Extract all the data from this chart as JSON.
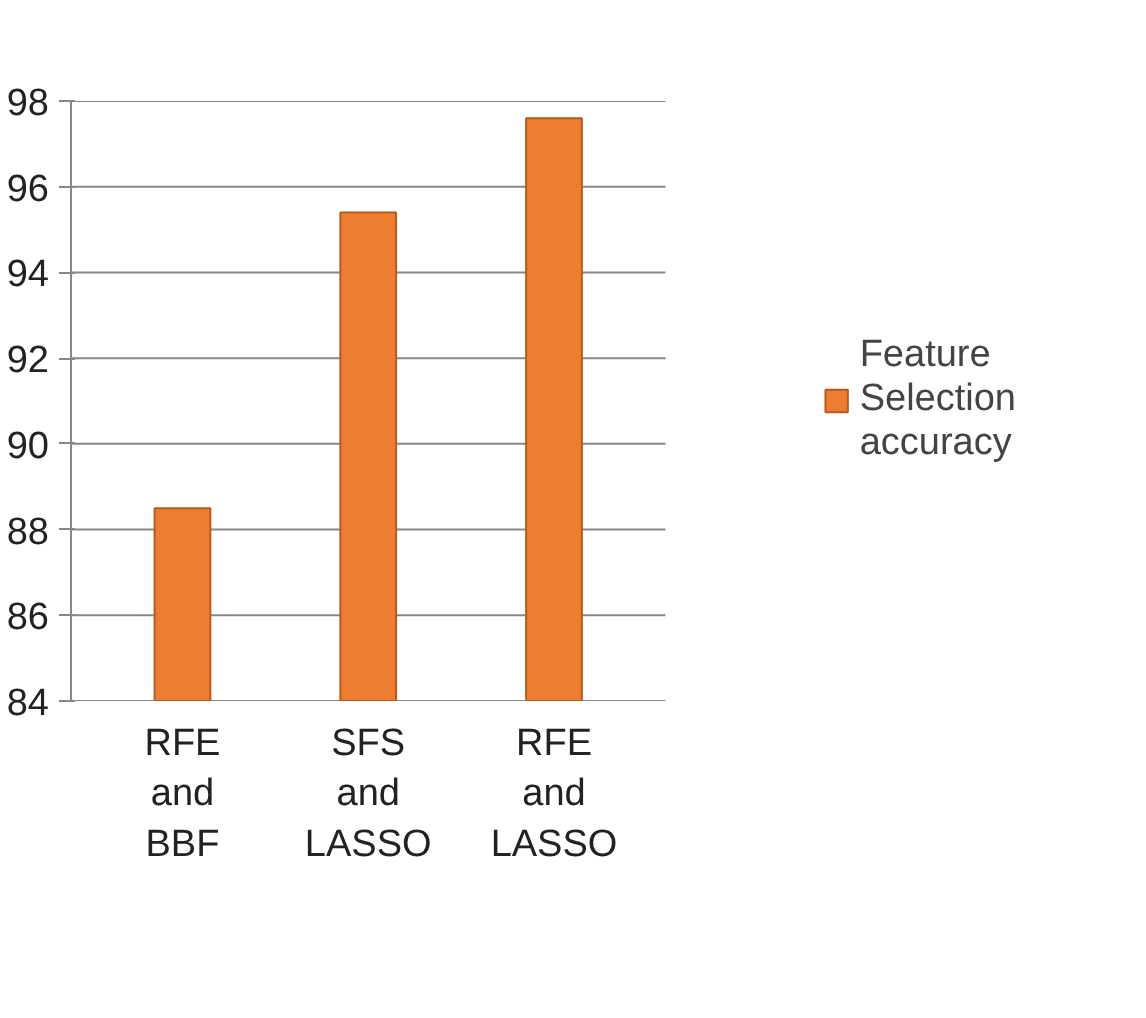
{
  "chart_data": {
    "type": "bar",
    "categories": [
      "RFE and BBF",
      "SFS and LASSO",
      "RFE and LASSO"
    ],
    "series": [
      {
        "name": "Feature Selection accuracy",
        "color": "#ed7d31",
        "values": [
          88.5,
          95.4,
          97.6
        ]
      }
    ],
    "ylim": [
      84,
      98
    ],
    "yticks": [
      84,
      86,
      88,
      90,
      92,
      94,
      96,
      98
    ],
    "grid": "y",
    "legend": "right"
  }
}
